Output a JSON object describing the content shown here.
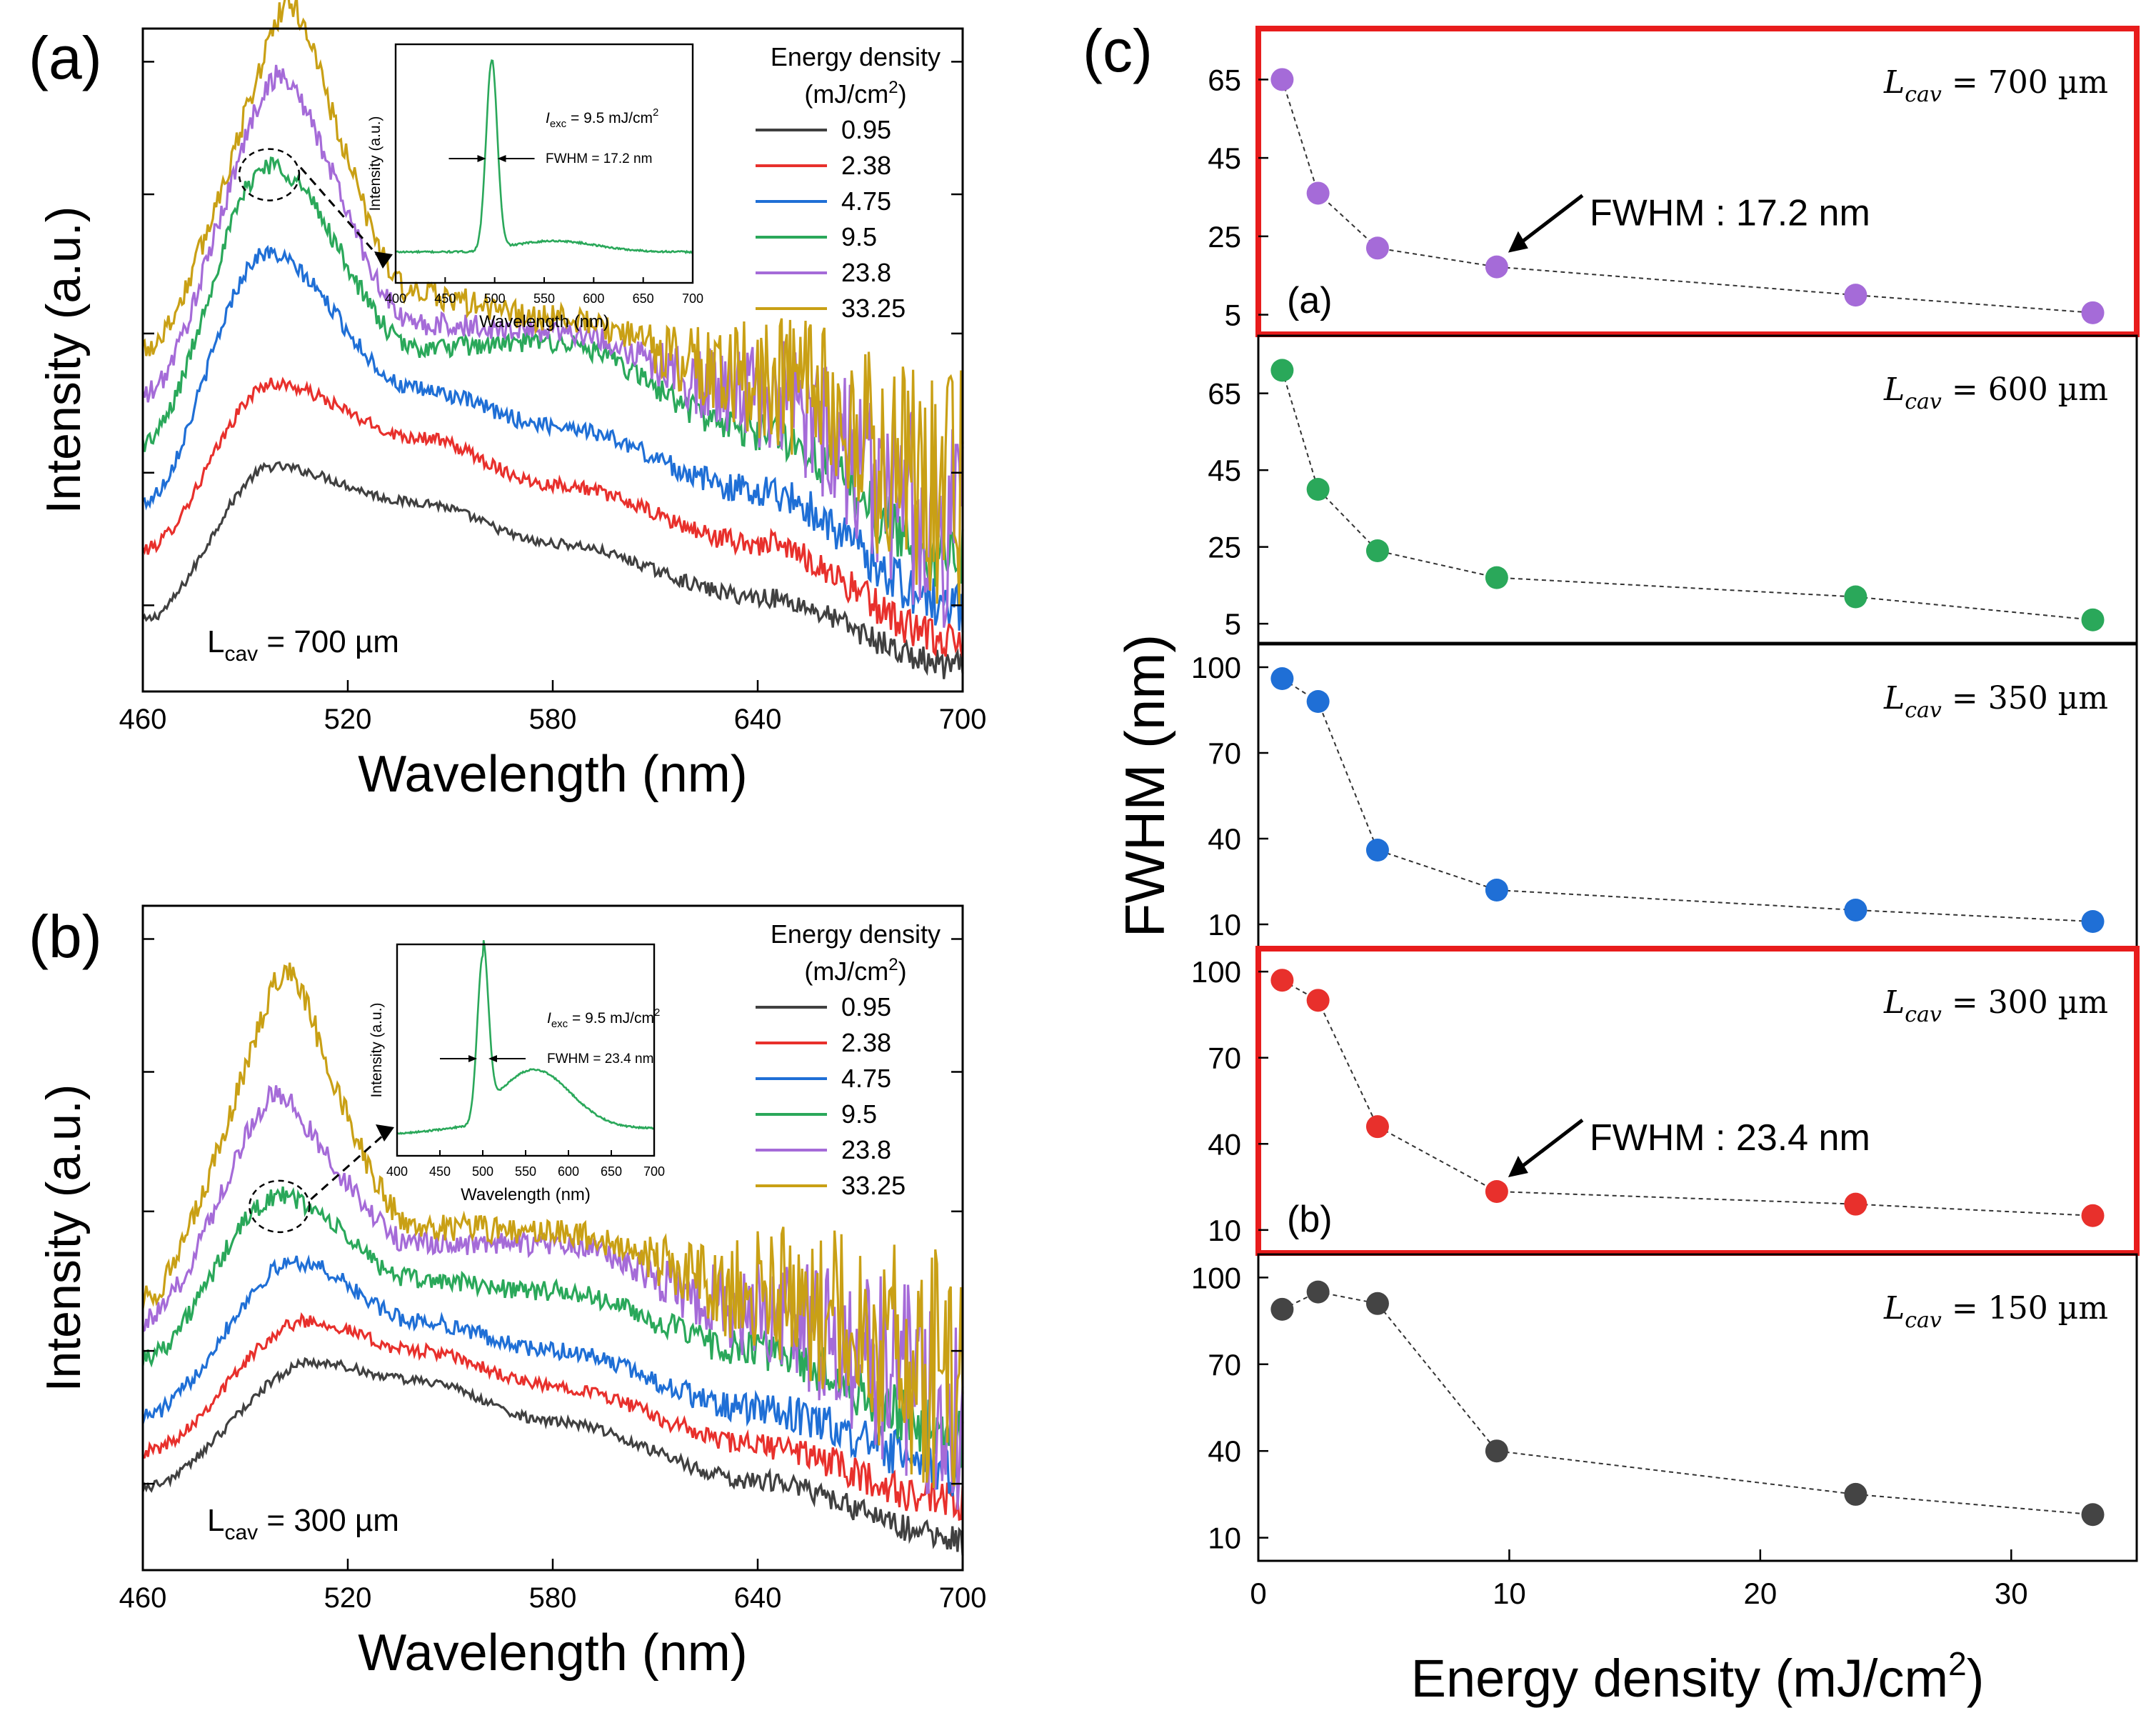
{
  "colors": {
    "0.95": "#404040",
    "2.38": "#e8302c",
    "4.75": "#1f6fd6",
    "9.5": "#2aa85a",
    "23.8": "#a56bd8",
    "33.25": "#c9a015",
    "highlight_box": "#e81c1c"
  },
  "panel_labels": {
    "a": "(a)",
    "b": "(b)",
    "c": "(c)"
  },
  "chart_data": [
    {
      "id": "a",
      "type": "line",
      "title": "",
      "xlabel": "Wavelength (nm)",
      "ylabel": "Intensity (a.u.)",
      "xlim": [
        460,
        700
      ],
      "xticks": [
        "460",
        "520",
        "580",
        "640",
        "700"
      ],
      "annotation": {
        "prefix": "L",
        "sub": "cav",
        "rest": " = 700 µm"
      },
      "legend": {
        "title_line1": "Energy density",
        "title_line2_prefix": "(mJ/cm",
        "title_line2_sup": "2",
        "title_line2_suffix": ")",
        "position": "top-right"
      },
      "series": [
        {
          "name": "0.95",
          "peak": 498,
          "values": [
            0.12,
            0.38,
            0.32,
            0.25,
            0.16,
            0.04
          ]
        },
        {
          "name": "2.38",
          "peak": 498,
          "values": [
            0.24,
            0.52,
            0.43,
            0.35,
            0.25,
            0.08
          ]
        },
        {
          "name": "4.75",
          "peak": 496,
          "values": [
            0.32,
            0.74,
            0.51,
            0.45,
            0.34,
            0.14
          ]
        },
        {
          "name": "9.5",
          "peak": 497,
          "values": [
            0.42,
            0.89,
            0.58,
            0.59,
            0.44,
            0.22
          ]
        },
        {
          "name": "23.8",
          "peak": 500,
          "values": [
            0.5,
            1.0,
            0.62,
            0.61,
            0.5,
            0.28
          ]
        },
        {
          "name": "33.25",
          "peak": 503,
          "values": [
            0.58,
            1.07,
            0.67,
            0.63,
            0.53,
            0.32
          ]
        }
      ],
      "inset": {
        "xlabel": "Wavelength (nm)",
        "ylabel": "Intensity (a.u.)",
        "xlim": [
          400,
          700
        ],
        "xticks": [
          "400",
          "450",
          "500",
          "550",
          "600",
          "650",
          "700"
        ],
        "iexc_prefix": "I",
        "iexc_sub": "exc",
        "iexc_rest": " = 9.5 mJ/cm",
        "iexc_sup": "2",
        "fwhm_label": "FWHM = 17.2 nm",
        "peak": 497,
        "shoulder": 0.05
      }
    },
    {
      "id": "b",
      "type": "line",
      "title": "",
      "xlabel": "Wavelength (nm)",
      "ylabel": "Intensity (a.u.)",
      "xlim": [
        460,
        700
      ],
      "xticks": [
        "460",
        "520",
        "580",
        "640",
        "700"
      ],
      "annotation": {
        "prefix": "L",
        "sub": "cav",
        "rest": " = 300 µm"
      },
      "legend": {
        "title_line1": "Energy density",
        "title_line2_prefix": "(mJ/cm",
        "title_line2_sup": "2",
        "title_line2_suffix": ")",
        "position": "top-right"
      },
      "series": [
        {
          "name": "0.95",
          "peak": 510,
          "values": [
            0.14,
            0.35,
            0.32,
            0.25,
            0.15,
            0.05
          ]
        },
        {
          "name": "2.38",
          "peak": 508,
          "values": [
            0.2,
            0.42,
            0.37,
            0.31,
            0.21,
            0.11
          ]
        },
        {
          "name": "4.75",
          "peak": 505,
          "values": [
            0.26,
            0.52,
            0.42,
            0.37,
            0.27,
            0.17
          ]
        },
        {
          "name": "9.5",
          "peak": 500,
          "values": [
            0.36,
            0.63,
            0.49,
            0.47,
            0.37,
            0.23
          ]
        },
        {
          "name": "23.8",
          "peak": 499,
          "values": [
            0.42,
            0.76,
            0.55,
            0.55,
            0.44,
            0.29
          ]
        },
        {
          "name": "33.25",
          "peak": 502,
          "values": [
            0.46,
            0.92,
            0.58,
            0.57,
            0.47,
            0.33
          ]
        }
      ],
      "inset": {
        "xlabel": "Wavelength (nm)",
        "ylabel": "Intensity (a.u.)",
        "xlim": [
          400,
          700
        ],
        "xticks": [
          "400",
          "450",
          "500",
          "550",
          "600",
          "650",
          "700"
        ],
        "iexc_prefix": "I",
        "iexc_sub": "exc",
        "iexc_rest": " = 9.5 mJ/cm",
        "iexc_sup": "2",
        "fwhm_label": "FWHM = 23.4 nm",
        "peak": 500,
        "shoulder": 0.3
      }
    },
    {
      "id": "c",
      "type": "scatter",
      "title": "",
      "xlabel_prefix": "Energy density (mJ/cm",
      "xlabel_sup": "2",
      "xlabel_suffix": ")",
      "ylabel": "FWHM (nm)",
      "xlim": [
        0,
        35
      ],
      "xticks": [
        "0",
        "10",
        "20",
        "30"
      ],
      "x": [
        0.95,
        2.38,
        4.75,
        9.5,
        23.8,
        33.25
      ],
      "panels": [
        {
          "L": "700",
          "label_prefix": "L",
          "label_sub": "cav",
          "label_rest": " = 700 µm",
          "color": "#a56bd8",
          "ylim": [
            0,
            78
          ],
          "yticks": [
            5,
            25,
            45,
            65
          ],
          "values": [
            65,
            36,
            22,
            17.2,
            10,
            5.5
          ],
          "highlight": true,
          "tag": "(a)",
          "callout": "FWHM : 17.2 nm"
        },
        {
          "L": "600",
          "label_prefix": "L",
          "label_sub": "cav",
          "label_rest": " = 600 µm",
          "color": "#2aa85a",
          "ylim": [
            0,
            80
          ],
          "yticks": [
            5,
            25,
            45,
            65
          ],
          "values": [
            71,
            40,
            24,
            17,
            12,
            6
          ],
          "highlight": false
        },
        {
          "L": "350",
          "label_prefix": "L",
          "label_sub": "cav",
          "label_rest": " = 350 µm",
          "color": "#1f6fd6",
          "ylim": [
            2,
            108
          ],
          "yticks": [
            10,
            40,
            70,
            100
          ],
          "values": [
            96,
            88,
            36,
            22,
            15,
            11
          ],
          "highlight": false
        },
        {
          "L": "300",
          "label_prefix": "L",
          "label_sub": "cav",
          "label_rest": " = 300 µm",
          "color": "#e8302c",
          "ylim": [
            2,
            108
          ],
          "yticks": [
            10,
            40,
            70,
            100
          ],
          "values": [
            97,
            90,
            46,
            23.4,
            19,
            15
          ],
          "highlight": true,
          "tag": "(b)",
          "callout": "FWHM : 23.4 nm"
        },
        {
          "L": "150",
          "label_prefix": "L",
          "label_sub": "cav",
          "label_rest": " = 150 µm",
          "color": "#444444",
          "ylim": [
            2,
            108
          ],
          "yticks": [
            10,
            40,
            70,
            100
          ],
          "values": [
            89,
            95,
            91,
            40,
            25,
            18
          ],
          "highlight": false
        }
      ]
    }
  ]
}
